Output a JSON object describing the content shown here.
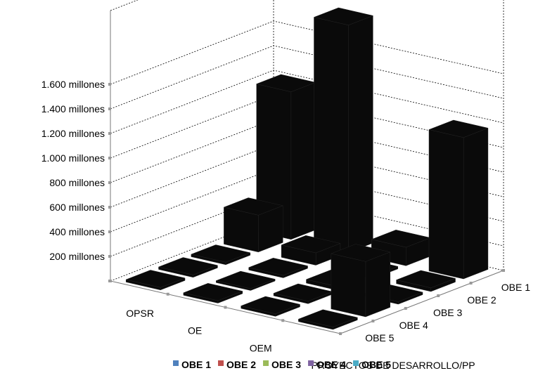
{
  "chart_data": {
    "type": "bar3d",
    "x_categories": [
      "OPSR",
      "OE",
      "OEM",
      "PROYECTOS DE DESARROLLO/PP"
    ],
    "series": [
      {
        "name": "OBE 1",
        "values": [
          1200,
          1850,
          150,
          1150
        ]
      },
      {
        "name": "OBE 2",
        "values": [
          300,
          100,
          20,
          30
        ]
      },
      {
        "name": "OBE 3",
        "values": [
          20,
          20,
          30,
          20
        ]
      },
      {
        "name": "OBE 4",
        "values": [
          20,
          15,
          20,
          450
        ]
      },
      {
        "name": "OBE 5",
        "values": [
          20,
          20,
          20,
          20
        ]
      }
    ],
    "z_labels": [
      "OBE 1",
      "OBE 2",
      "OBE 3",
      "OBE 4",
      "OBE 5"
    ],
    "y_ticks": [
      {
        "value": 200,
        "label": "200   millones"
      },
      {
        "value": 400,
        "label": "400   millones"
      },
      {
        "value": 600,
        "label": "600   millones"
      },
      {
        "value": 800,
        "label": "800   millones"
      },
      {
        "value": 1000,
        "label": "1.000   millones"
      },
      {
        "value": 1200,
        "label": "1.200   millones"
      },
      {
        "value": 1400,
        "label": "1.400   millones"
      },
      {
        "value": 1600,
        "label": "1.600   millones"
      }
    ],
    "ylim": [
      0,
      2200
    ],
    "grid": true,
    "legend_position": "bottom",
    "colors": {
      "bar": "#0a0a0a",
      "OBE 1": "#4f81bd",
      "OBE 2": "#c0504d",
      "OBE 3": "#9bbb59",
      "OBE 4": "#8064a2",
      "OBE 5": "#4bacc6"
    }
  }
}
